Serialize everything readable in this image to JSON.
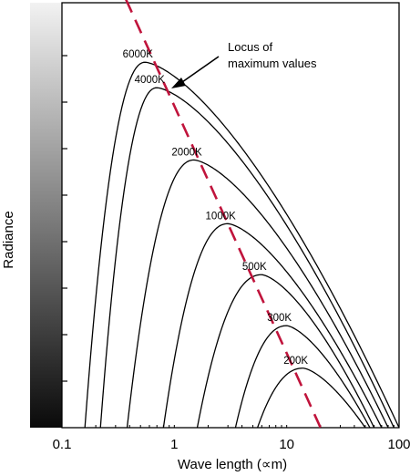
{
  "chart_data": {
    "type": "line",
    "title": "",
    "xlabel": "Wave  length (∝m)",
    "ylabel": "Radiance",
    "x_scale": "log",
    "xlim": [
      0.1,
      100
    ],
    "x_ticks": [
      {
        "value": 0.1,
        "label": "0.1"
      },
      {
        "value": 1,
        "label": "1"
      },
      {
        "value": 10,
        "label": "10"
      },
      {
        "value": 100,
        "label": "100"
      }
    ],
    "series": [
      {
        "name": "6000K",
        "peak_x": 0.55,
        "peak_y": 0.86,
        "start_x": 0.16,
        "end_x": 100
      },
      {
        "name": "4000K",
        "peak_x": 0.7,
        "peak_y": 0.8,
        "start_x": 0.22,
        "end_x": 90
      },
      {
        "name": "2000K",
        "peak_x": 1.5,
        "peak_y": 0.63,
        "start_x": 0.38,
        "end_x": 80
      },
      {
        "name": "1000K",
        "peak_x": 3.0,
        "peak_y": 0.48,
        "start_x": 0.8,
        "end_x": 70
      },
      {
        "name": "500K",
        "peak_x": 6.0,
        "peak_y": 0.36,
        "start_x": 1.6,
        "end_x": 60
      },
      {
        "name": "300K",
        "peak_x": 10.0,
        "peak_y": 0.24,
        "start_x": 3.5,
        "end_x": 55
      },
      {
        "name": "200K",
        "peak_x": 14.0,
        "peak_y": 0.14,
        "start_x": 5.5,
        "end_x": 50
      }
    ],
    "locus": {
      "style": "dashed",
      "color": "#c0143c",
      "x_start": 0.37,
      "x_end": 20
    },
    "annotation": {
      "lines": [
        "Locus of",
        "maximum values"
      ],
      "points_to_x": 0.85
    },
    "legend": "none",
    "grid": false
  },
  "colors": {
    "curve": "#000000",
    "locus": "#c0143c",
    "gradient_top": "#f2f2f2",
    "gradient_bottom": "#0a0a0a"
  }
}
